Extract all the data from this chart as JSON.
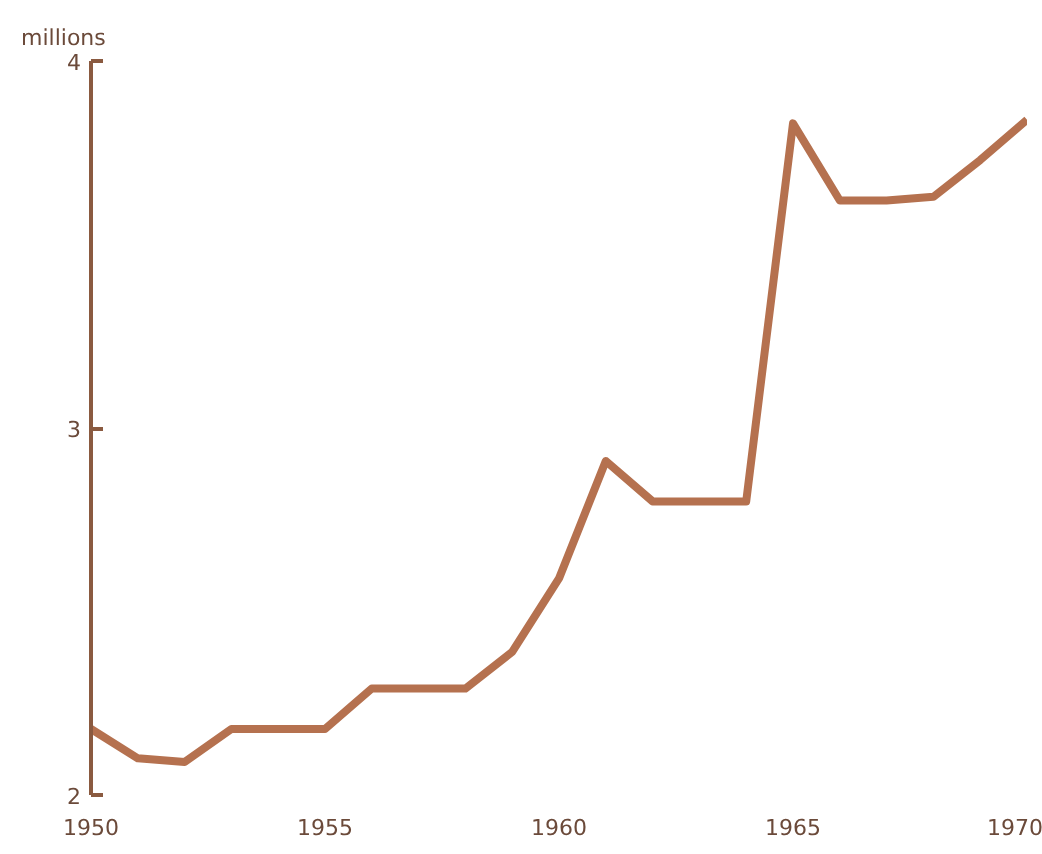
{
  "chart_data": {
    "type": "line",
    "ylabel": "millions",
    "x": [
      1950,
      1951,
      1952,
      1953,
      1954,
      1955,
      1956,
      1957,
      1958,
      1959,
      1960,
      1961,
      1962,
      1963,
      1964,
      1965,
      1966,
      1967,
      1968,
      1969,
      1970
    ],
    "series": [
      {
        "color": "#b5714f",
        "values": [
          2.18,
          2.1,
          2.09,
          2.18,
          2.18,
          2.18,
          2.29,
          2.29,
          2.29,
          2.39,
          2.59,
          2.91,
          2.8,
          2.8,
          2.8,
          3.83,
          3.62,
          3.62,
          3.63,
          3.73,
          3.84
        ]
      }
    ],
    "xlim": [
      1950,
      1970
    ],
    "ylim": [
      2,
      4
    ],
    "xticks": [
      1950,
      1955,
      1960,
      1965,
      1970
    ],
    "yticks": [
      2,
      3,
      4
    ],
    "grid": false,
    "marker": "none",
    "line_style": "solid"
  }
}
